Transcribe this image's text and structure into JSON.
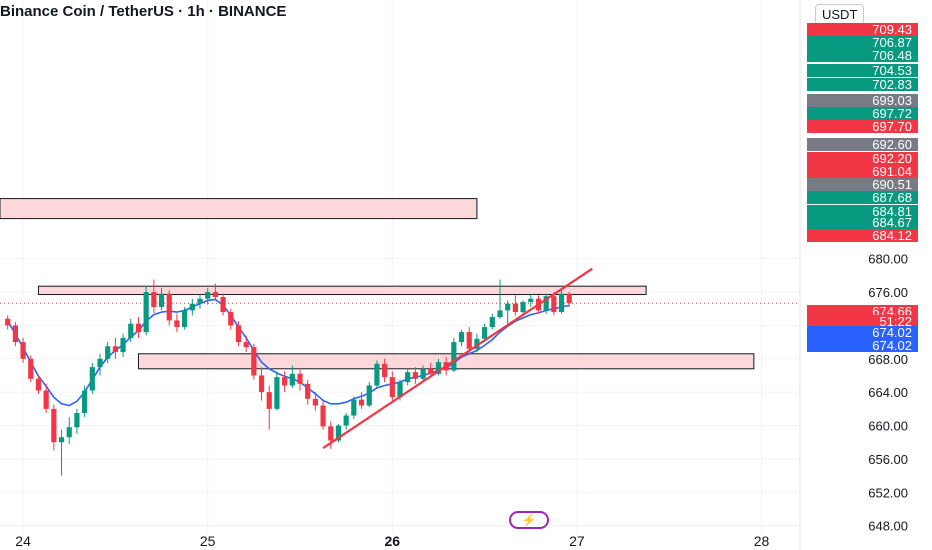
{
  "header": {
    "title": "Binance Coin / TetherUS · 1h · BINANCE"
  },
  "price_axis": {
    "unit": "USDT"
  },
  "price_labels": [
    {
      "text": "709.43",
      "color": "#f23645"
    },
    {
      "text": "706.87",
      "color": "#089981"
    },
    {
      "text": "706.48",
      "color": "#089981"
    },
    {
      "text": "704.53",
      "color": "#089981"
    },
    {
      "text": "702.83",
      "color": "#089981"
    },
    {
      "text": "699.03",
      "color": "#787b86"
    },
    {
      "text": "697.72",
      "color": "#089981"
    },
    {
      "text": "697.70",
      "color": "#f23645"
    },
    {
      "text": "692.60",
      "color": "#787b86"
    },
    {
      "text": "692.20",
      "color": "#f23645"
    },
    {
      "text": "691.04",
      "color": "#f23645"
    },
    {
      "text": "690.51",
      "color": "#787b86"
    },
    {
      "text": "687.68",
      "color": "#089981"
    },
    {
      "text": "684.81",
      "color": "#089981"
    },
    {
      "text": "684.67",
      "color": "#089981"
    },
    {
      "text": "684.12",
      "color": "#f23645"
    },
    {
      "text": "674.66",
      "color": "#f23645"
    },
    {
      "text": "51:22",
      "color": "#f23645"
    },
    {
      "text": "674.02",
      "color": "#2962ff"
    },
    {
      "text": "674.02",
      "color": "#2962ff"
    }
  ],
  "bolt_icon": {
    "glyph": "⚡"
  },
  "chart_data": {
    "type": "candlestick",
    "symbol": "BNB/USDT",
    "timeframe": "1h",
    "x_ticks": [
      {
        "label": "24",
        "t": 0
      },
      {
        "label": "25",
        "t": 24
      },
      {
        "label": "26",
        "t": 48
      },
      {
        "label": "27",
        "t": 72
      },
      {
        "label": "28",
        "t": 96
      }
    ],
    "xlim": [
      -3,
      101
    ],
    "y_ticks": [
      "680.00",
      "676.00",
      "672.00",
      "668.00",
      "664.00",
      "660.00",
      "656.00",
      "652.00",
      "648.00"
    ],
    "ylim": [
      647,
      711
    ],
    "last_price": 674.66,
    "candles": [
      [
        -2,
        672.8,
        673.2,
        671.5,
        672.0
      ],
      [
        -1,
        672.0,
        672.4,
        669.5,
        670.0
      ],
      [
        0,
        670.0,
        670.5,
        667.5,
        668.0
      ],
      [
        1,
        668.0,
        668.4,
        665.2,
        665.6
      ],
      [
        2,
        665.6,
        666.0,
        663.8,
        664.2
      ],
      [
        3,
        664.2,
        665.0,
        661.5,
        662.0
      ],
      [
        4,
        662.0,
        662.5,
        657.0,
        658.0
      ],
      [
        5,
        658.0,
        659.5,
        654.0,
        658.6
      ],
      [
        6,
        658.6,
        661.0,
        657.8,
        659.8
      ],
      [
        7,
        659.8,
        662.0,
        659.0,
        661.5
      ],
      [
        8,
        661.5,
        664.8,
        661.0,
        664.2
      ],
      [
        9,
        664.2,
        667.5,
        663.8,
        667.0
      ],
      [
        10,
        667.0,
        668.6,
        666.0,
        668.0
      ],
      [
        11,
        668.0,
        670.0,
        667.5,
        669.5
      ],
      [
        12,
        669.5,
        670.5,
        668.0,
        668.8
      ],
      [
        13,
        668.8,
        671.0,
        668.2,
        670.5
      ],
      [
        14,
        670.5,
        672.8,
        670.0,
        672.2
      ],
      [
        15,
        672.2,
        673.0,
        670.5,
        671.2
      ],
      [
        16,
        671.2,
        676.8,
        670.8,
        676.0
      ],
      [
        17,
        676.0,
        677.5,
        673.5,
        674.2
      ],
      [
        18,
        674.2,
        676.5,
        673.8,
        675.8
      ],
      [
        19,
        675.8,
        676.2,
        672.0,
        672.6
      ],
      [
        20,
        672.6,
        673.4,
        671.2,
        671.8
      ],
      [
        21,
        671.8,
        674.2,
        671.5,
        673.8
      ],
      [
        22,
        673.8,
        675.2,
        673.2,
        674.6
      ],
      [
        23,
        674.6,
        675.8,
        674.0,
        675.2
      ],
      [
        24,
        675.2,
        676.5,
        674.5,
        676.0
      ],
      [
        25,
        676.0,
        677.0,
        675.0,
        675.4
      ],
      [
        26,
        675.4,
        675.8,
        673.2,
        673.6
      ],
      [
        27,
        673.6,
        674.0,
        671.5,
        672.0
      ],
      [
        28,
        672.0,
        672.5,
        669.5,
        670.0
      ],
      [
        29,
        670.0,
        670.8,
        668.8,
        669.4
      ],
      [
        30,
        669.4,
        669.8,
        665.5,
        666.0
      ],
      [
        31,
        666.0,
        667.0,
        663.0,
        664.0
      ],
      [
        32,
        664.0,
        664.8,
        659.5,
        662.0
      ],
      [
        33,
        662.0,
        666.5,
        661.8,
        665.8
      ],
      [
        34,
        665.8,
        666.5,
        664.0,
        664.8
      ],
      [
        35,
        664.8,
        667.2,
        664.5,
        666.2
      ],
      [
        36,
        666.2,
        666.8,
        664.2,
        665.0
      ],
      [
        37,
        665.0,
        665.5,
        662.5,
        663.2
      ],
      [
        38,
        663.2,
        664.0,
        661.8,
        662.4
      ],
      [
        39,
        662.4,
        663.0,
        659.5,
        659.9
      ],
      [
        40,
        659.9,
        660.5,
        657.2,
        658.2
      ],
      [
        41,
        658.2,
        660.2,
        658.0,
        660.0
      ],
      [
        42,
        660.0,
        661.5,
        659.5,
        661.2
      ],
      [
        43,
        661.2,
        663.5,
        660.8,
        663.1
      ],
      [
        44,
        663.1,
        664.0,
        662.0,
        662.4
      ],
      [
        45,
        662.4,
        665.2,
        662.2,
        664.8
      ],
      [
        46,
        664.8,
        667.8,
        664.5,
        667.4
      ],
      [
        47,
        667.4,
        668.0,
        665.2,
        665.8
      ],
      [
        48,
        665.8,
        666.5,
        663.0,
        663.4
      ],
      [
        49,
        663.4,
        665.5,
        663.0,
        665.2
      ],
      [
        50,
        665.2,
        666.8,
        664.8,
        666.4
      ],
      [
        51,
        666.4,
        667.0,
        665.0,
        665.6
      ],
      [
        52,
        665.6,
        667.2,
        665.2,
        666.8
      ],
      [
        53,
        666.8,
        667.5,
        665.8,
        666.2
      ],
      [
        54,
        666.2,
        668.0,
        666.0,
        667.6
      ],
      [
        55,
        667.6,
        668.2,
        666.0,
        666.6
      ],
      [
        56,
        666.6,
        670.5,
        666.4,
        670.0
      ],
      [
        57,
        670.0,
        671.5,
        669.5,
        671.2
      ],
      [
        58,
        671.2,
        671.8,
        668.6,
        669.2
      ],
      [
        59,
        669.2,
        671.0,
        668.8,
        670.4
      ],
      [
        60,
        670.4,
        672.2,
        670.0,
        671.8
      ],
      [
        61,
        671.8,
        673.4,
        671.5,
        673.0
      ],
      [
        62,
        673.0,
        677.5,
        672.8,
        673.8
      ],
      [
        63,
        673.8,
        675.0,
        672.2,
        674.6
      ],
      [
        64,
        674.6,
        675.6,
        673.2,
        673.6
      ],
      [
        65,
        673.6,
        675.0,
        673.4,
        674.8
      ],
      [
        66,
        674.8,
        675.8,
        674.2,
        675.2
      ],
      [
        67,
        675.2,
        675.6,
        673.4,
        673.8
      ],
      [
        68,
        673.8,
        675.8,
        673.4,
        675.5
      ],
      [
        69,
        675.5,
        676.0,
        673.2,
        673.6
      ],
      [
        70,
        673.6,
        676.2,
        673.4,
        675.8
      ],
      [
        71,
        675.8,
        676.0,
        674.2,
        674.66
      ]
    ],
    "moving_average": [
      [
        -2,
        672.5
      ],
      [
        -1,
        671.0
      ],
      [
        0,
        669.3
      ],
      [
        1,
        667.6
      ],
      [
        2,
        665.9
      ],
      [
        3,
        664.7
      ],
      [
        4,
        663.4
      ],
      [
        5,
        662.6
      ],
      [
        6,
        662.4
      ],
      [
        7,
        662.9
      ],
      [
        8,
        664.0
      ],
      [
        9,
        665.5
      ],
      [
        10,
        667.0
      ],
      [
        11,
        668.2
      ],
      [
        12,
        669.0
      ],
      [
        13,
        669.7
      ],
      [
        14,
        670.6
      ],
      [
        15,
        671.4
      ],
      [
        16,
        672.5
      ],
      [
        17,
        673.3
      ],
      [
        18,
        673.6
      ],
      [
        19,
        673.7
      ],
      [
        20,
        673.6
      ],
      [
        21,
        673.8
      ],
      [
        22,
        674.2
      ],
      [
        23,
        674.6
      ],
      [
        24,
        675.0
      ],
      [
        25,
        675.1
      ],
      [
        26,
        674.4
      ],
      [
        27,
        673.2
      ],
      [
        28,
        671.8
      ],
      [
        29,
        670.5
      ],
      [
        30,
        669.0
      ],
      [
        31,
        667.6
      ],
      [
        32,
        666.8
      ],
      [
        33,
        666.3
      ],
      [
        34,
        665.9
      ],
      [
        35,
        665.6
      ],
      [
        36,
        665.2
      ],
      [
        37,
        664.5
      ],
      [
        38,
        663.8
      ],
      [
        39,
        663.0
      ],
      [
        40,
        662.6
      ],
      [
        41,
        662.6
      ],
      [
        42,
        662.8
      ],
      [
        43,
        663.2
      ],
      [
        44,
        663.5
      ],
      [
        45,
        663.9
      ],
      [
        46,
        664.5
      ],
      [
        47,
        664.8
      ],
      [
        48,
        665.0
      ],
      [
        49,
        665.2
      ],
      [
        50,
        665.6
      ],
      [
        51,
        665.8
      ],
      [
        52,
        666.0
      ],
      [
        53,
        666.3
      ],
      [
        54,
        666.6
      ],
      [
        55,
        666.9
      ],
      [
        56,
        667.5
      ],
      [
        57,
        668.2
      ],
      [
        58,
        668.6
      ],
      [
        59,
        669.0
      ],
      [
        60,
        669.6
      ],
      [
        61,
        670.3
      ],
      [
        62,
        671.2
      ],
      [
        63,
        671.9
      ],
      [
        64,
        672.5
      ],
      [
        65,
        672.9
      ],
      [
        66,
        673.3
      ],
      [
        67,
        673.5
      ],
      [
        68,
        673.8
      ],
      [
        69,
        674.0
      ],
      [
        70,
        674.2
      ],
      [
        71,
        674.4
      ]
    ],
    "zones": [
      {
        "t1": -3,
        "t2": 59,
        "p_low": 684.8,
        "p_high": 687.2
      },
      {
        "t1": 2,
        "t2": 81,
        "p_low": 675.7,
        "p_high": 676.7
      },
      {
        "t1": 15,
        "t2": 95,
        "p_low": 666.8,
        "p_high": 668.6
      }
    ],
    "trendline": {
      "t1": 39,
      "p1": 657.3,
      "t2": 74,
      "p2": 678.8
    },
    "colors": {
      "up": "#089981",
      "down": "#f23645",
      "ma": "#2962ff",
      "zone_fill": "#fcd8db",
      "zone_stroke": "#131722",
      "trendline": "#f23645"
    }
  }
}
